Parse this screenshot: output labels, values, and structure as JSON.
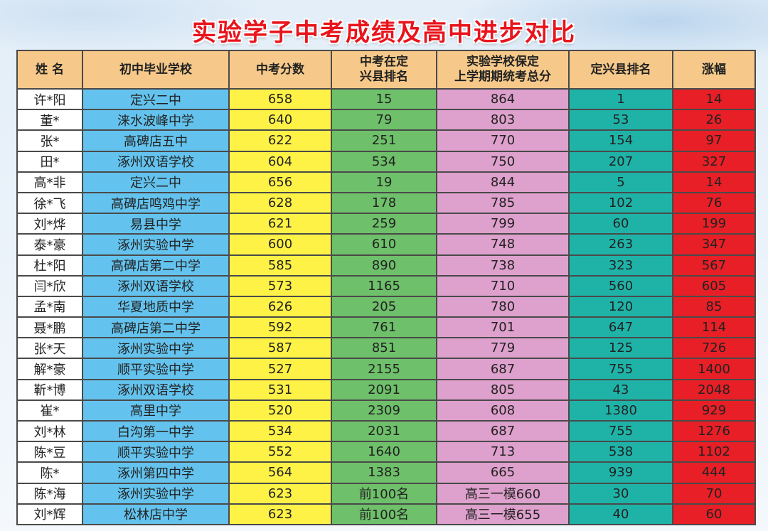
{
  "title": "实验学子中考成绩及高中进步对比",
  "headers": {
    "name": "姓 名",
    "school": "初中毕业学校",
    "score": "中考分数",
    "rank_line1": "中考在定",
    "rank_line2": "兴县排名",
    "total_line1": "实验学校保定",
    "total_line2": "上学期期统考总分",
    "county_rank": "定兴县排名",
    "gain": "涨幅"
  },
  "colors": {
    "title": "#e8141c",
    "header": "#f6c98a",
    "name": "#ffffff",
    "school": "#64c3ee",
    "score": "#fff247",
    "rank": "#6ec06a",
    "total": "#dea0cc",
    "county_rank": "#1fb3a8",
    "gain": "#e81f26"
  },
  "rows": [
    {
      "name": "许*阳",
      "school": "定兴二中",
      "score": "658",
      "rank": "15",
      "total": "864",
      "county_rank": "1",
      "gain": "14"
    },
    {
      "name": "董*",
      "school": "涞水波峰中学",
      "score": "640",
      "rank": "79",
      "total": "803",
      "county_rank": "53",
      "gain": "26"
    },
    {
      "name": "张*",
      "school": "高碑店五中",
      "score": "622",
      "rank": "251",
      "total": "770",
      "county_rank": "154",
      "gain": "97"
    },
    {
      "name": "田*",
      "school": "涿州双语学校",
      "score": "604",
      "rank": "534",
      "total": "750",
      "county_rank": "207",
      "gain": "327"
    },
    {
      "name": "高*非",
      "school": "定兴二中",
      "score": "656",
      "rank": "19",
      "total": "844",
      "county_rank": "5",
      "gain": "14"
    },
    {
      "name": "徐*飞",
      "school": "高碑店鸣鸡中学",
      "score": "628",
      "rank": "178",
      "total": "785",
      "county_rank": "102",
      "gain": "76"
    },
    {
      "name": "刘*烨",
      "school": "易县中学",
      "score": "621",
      "rank": "259",
      "total": "799",
      "county_rank": "60",
      "gain": "199"
    },
    {
      "name": "泰*豪",
      "school": "涿州实验中学",
      "score": "600",
      "rank": "610",
      "total": "748",
      "county_rank": "263",
      "gain": "347"
    },
    {
      "name": "杜*阳",
      "school": "高碑店第二中学",
      "score": "585",
      "rank": "890",
      "total": "738",
      "county_rank": "323",
      "gain": "567"
    },
    {
      "name": "闫*欣",
      "school": "涿州双语学校",
      "score": "573",
      "rank": "1165",
      "total": "710",
      "county_rank": "560",
      "gain": "605"
    },
    {
      "name": "孟*南",
      "school": "华夏地质中学",
      "score": "626",
      "rank": "205",
      "total": "780",
      "county_rank": "120",
      "gain": "85"
    },
    {
      "name": "聂*鹏",
      "school": "高碑店第二中学",
      "score": "592",
      "rank": "761",
      "total": "701",
      "county_rank": "647",
      "gain": "114"
    },
    {
      "name": "张*天",
      "school": "涿州实验中学",
      "score": "587",
      "rank": "851",
      "total": "779",
      "county_rank": "125",
      "gain": "726"
    },
    {
      "name": "解*豪",
      "school": "顺平实验中学",
      "score": "527",
      "rank": "2155",
      "total": "687",
      "county_rank": "755",
      "gain": "1400"
    },
    {
      "name": "靳*博",
      "school": "涿州双语学校",
      "score": "531",
      "rank": "2091",
      "total": "805",
      "county_rank": "43",
      "gain": "2048"
    },
    {
      "name": "崔*",
      "school": "高里中学",
      "score": "520",
      "rank": "2309",
      "total": "608",
      "county_rank": "1380",
      "gain": "929"
    },
    {
      "name": "刘*林",
      "school": "白沟第一中学",
      "score": "534",
      "rank": "2031",
      "total": "687",
      "county_rank": "755",
      "gain": "1276"
    },
    {
      "name": "陈*豆",
      "school": "顺平实验中学",
      "score": "552",
      "rank": "1640",
      "total": "713",
      "county_rank": "538",
      "gain": "1102"
    },
    {
      "name": "陈*",
      "school": "涿州第四中学",
      "score": "564",
      "rank": "1383",
      "total": "665",
      "county_rank": "939",
      "gain": "444"
    },
    {
      "name": "陈*海",
      "school": "涿州实验中学",
      "score": "623",
      "rank": "前100名",
      "total": "高三一模660",
      "county_rank": "30",
      "gain": "70"
    },
    {
      "name": "刘*辉",
      "school": "松林店中学",
      "score": "623",
      "rank": "前100名",
      "total": "高三一模655",
      "county_rank": "40",
      "gain": "60"
    }
  ]
}
